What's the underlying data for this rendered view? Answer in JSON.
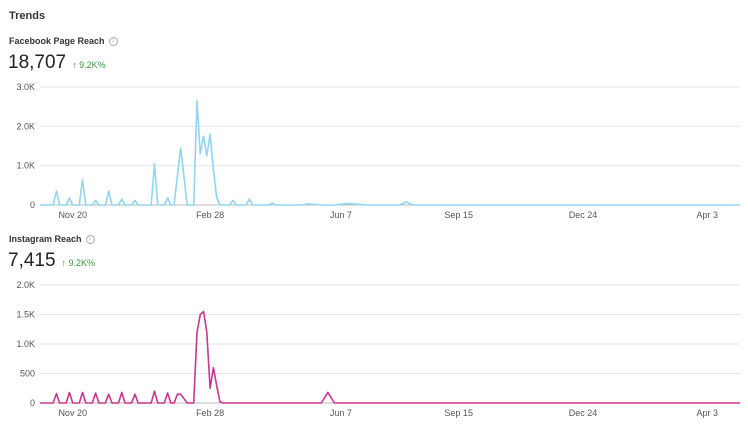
{
  "header": {
    "title": "Trends"
  },
  "metrics": [
    {
      "label": "Facebook Page Reach",
      "value": "18,707",
      "change": "↑ 9.2K%",
      "info_icon": "info-icon"
    },
    {
      "label": "Instagram Reach",
      "value": "7,415",
      "change": "↑ 9.2K%",
      "info_icon": "info-icon"
    }
  ],
  "chart_data": [
    {
      "type": "line",
      "title": "",
      "color": "#8fd6f2",
      "ylim": [
        0,
        3000
      ],
      "yticks": [
        0,
        1000,
        2000,
        3000
      ],
      "ytick_labels": [
        "0",
        "1.0K",
        "2.0K",
        "3.0K"
      ],
      "xlim": [
        0,
        214
      ],
      "xticks": [
        10,
        52,
        92,
        128,
        166,
        204
      ],
      "xtick_labels": [
        "Nov 20",
        "Feb 28",
        "Jun 7",
        "Sep 15",
        "Dec 24",
        "Apr 3"
      ],
      "grid": true,
      "series": [
        {
          "x": [
            0,
            4,
            5,
            6,
            8,
            9,
            10,
            12,
            13,
            14,
            16,
            17,
            18,
            20,
            21,
            22,
            24,
            25,
            26,
            28,
            29,
            30,
            34,
            35,
            36,
            38,
            39,
            40,
            41,
            42,
            43,
            45,
            46,
            47,
            48,
            49,
            50,
            51,
            52,
            53,
            54,
            55,
            56,
            58,
            59,
            60,
            63,
            64,
            65,
            70,
            71,
            72,
            78,
            80,
            82,
            86,
            88,
            90,
            94,
            100,
            110,
            112,
            114,
            120,
            130,
            150,
            180,
            214
          ],
          "y": [
            0,
            0,
            350,
            0,
            0,
            180,
            0,
            0,
            650,
            0,
            0,
            120,
            0,
            0,
            350,
            0,
            0,
            150,
            0,
            0,
            120,
            0,
            0,
            1050,
            0,
            0,
            180,
            0,
            0,
            750,
            1450,
            0,
            0,
            0,
            2650,
            1300,
            1750,
            1250,
            1800,
            900,
            200,
            0,
            0,
            0,
            120,
            0,
            0,
            150,
            0,
            0,
            50,
            0,
            0,
            0,
            30,
            0,
            0,
            0,
            40,
            0,
            0,
            80,
            0,
            0,
            0,
            0,
            0,
            0
          ]
        }
      ]
    },
    {
      "type": "line",
      "title": "",
      "color": "#c8378f",
      "ylim": [
        0,
        2000
      ],
      "yticks": [
        0,
        500,
        1000,
        1500,
        2000
      ],
      "ytick_labels": [
        "0",
        "500",
        "1.0K",
        "1.5K",
        "2.0K"
      ],
      "xlim": [
        0,
        214
      ],
      "xticks": [
        10,
        52,
        92,
        128,
        166,
        204
      ],
      "xtick_labels": [
        "Nov 20",
        "Feb 28",
        "Jun 7",
        "Sep 15",
        "Dec 24",
        "Apr 3"
      ],
      "grid": true,
      "series": [
        {
          "x": [
            0,
            4,
            5,
            6,
            8,
            9,
            10,
            12,
            13,
            14,
            16,
            17,
            18,
            20,
            21,
            22,
            24,
            25,
            26,
            28,
            29,
            30,
            34,
            35,
            36,
            38,
            39,
            40,
            41,
            42,
            43,
            45,
            46,
            47,
            48,
            49,
            50,
            51,
            52,
            53,
            54,
            55,
            56,
            58,
            70,
            80,
            86,
            88,
            90,
            100,
            130,
            214
          ],
          "y": [
            0,
            0,
            160,
            0,
            0,
            180,
            0,
            0,
            180,
            0,
            0,
            170,
            0,
            0,
            150,
            0,
            0,
            180,
            0,
            0,
            150,
            0,
            0,
            200,
            0,
            0,
            170,
            0,
            0,
            150,
            150,
            0,
            0,
            0,
            1200,
            1500,
            1550,
            1200,
            250,
            600,
            300,
            20,
            0,
            0,
            0,
            0,
            0,
            180,
            0,
            0,
            0,
            0
          ]
        }
      ]
    }
  ]
}
